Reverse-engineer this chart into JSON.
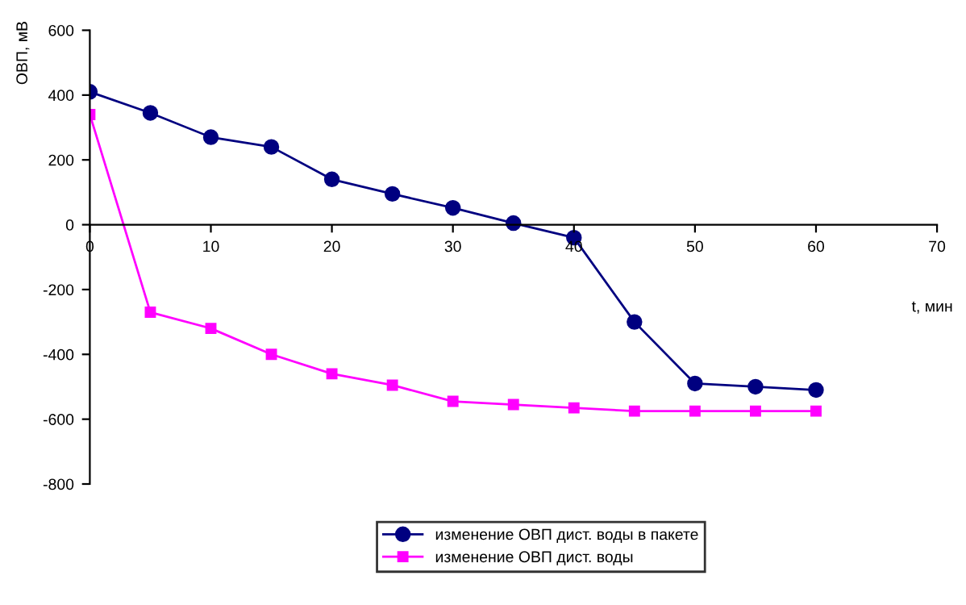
{
  "chart_data": {
    "type": "line",
    "xlabel": "t, мин",
    "ylabel": "ОВП, мВ",
    "x": [
      0,
      5,
      10,
      15,
      20,
      25,
      30,
      35,
      40,
      45,
      50,
      55,
      60
    ],
    "series": [
      {
        "name": "изменение ОВП дист. воды в пакете",
        "color": "#000080",
        "marker": "circle",
        "values": [
          410,
          345,
          270,
          240,
          140,
          95,
          52,
          5,
          -40,
          -300,
          -490,
          -500,
          -510
        ]
      },
      {
        "name": "изменение ОВП дист. воды",
        "color": "#ff00ff",
        "marker": "square",
        "values": [
          340,
          -270,
          -320,
          -400,
          -460,
          -495,
          -545,
          -555,
          -565,
          -575,
          -575,
          -575,
          -575
        ]
      }
    ],
    "xlim": [
      0,
      70
    ],
    "xticks": [
      0,
      10,
      20,
      30,
      40,
      50,
      60,
      70
    ],
    "ylim": [
      -800,
      600
    ],
    "yticks": [
      -800,
      -600,
      -400,
      -200,
      0,
      200,
      400,
      600
    ],
    "grid": false,
    "legend": "bottom",
    "line_style": "solid"
  }
}
